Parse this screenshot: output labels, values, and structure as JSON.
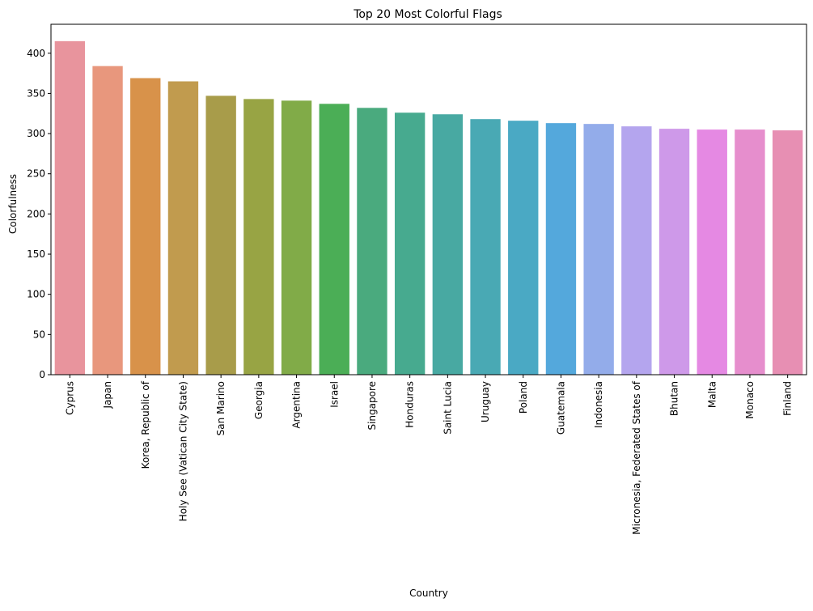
{
  "chart_data": {
    "type": "bar",
    "title": "Top 20 Most Colorful Flags",
    "xlabel": "Country",
    "ylabel": "Colorfulness",
    "ylim": [
      0,
      436
    ],
    "yticks": [
      0,
      50,
      100,
      150,
      200,
      250,
      300,
      350,
      400
    ],
    "grid": false,
    "categories": [
      "Cyprus",
      "Japan",
      "Korea, Republic of",
      "Holy See (Vatican City State)",
      "San Marino",
      "Georgia",
      "Argentina",
      "Israel",
      "Singapore",
      "Honduras",
      "Saint Lucia",
      "Uruguay",
      "Poland",
      "Guatemala",
      "Indonesia",
      "Micronesia, Federated States of",
      "Bhutan",
      "Malta",
      "Monaco",
      "Finland"
    ],
    "values": [
      415,
      384,
      369,
      365,
      347,
      343,
      341,
      337,
      332,
      326,
      324,
      318,
      316,
      313,
      312,
      309,
      306,
      305,
      305,
      304
    ],
    "colors": [
      "#e8949d",
      "#e8977d",
      "#d8924a",
      "#c19b4e",
      "#a89c4a",
      "#98a444",
      "#81ab48",
      "#4bae56",
      "#4aaa7e",
      "#47aa8f",
      "#48a9a2",
      "#49a9b4",
      "#4aa9c4",
      "#54a8dc",
      "#93acea",
      "#b4a5ee",
      "#ce99e9",
      "#e589e3",
      "#e68ecd",
      "#e78fb3"
    ]
  }
}
